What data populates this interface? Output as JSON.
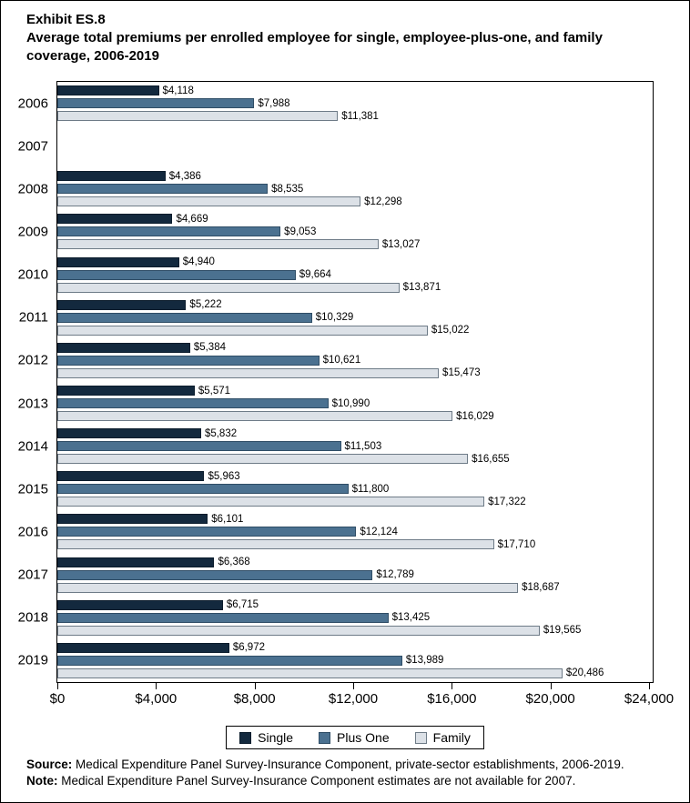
{
  "header": {
    "exhibit": "Exhibit ES.8",
    "title": "Average total premiums per enrolled employee for single, employee-plus-one, and family coverage, 2006-2019"
  },
  "chart_data": {
    "type": "bar",
    "orientation": "horizontal",
    "title": "Average total premiums per enrolled employee for single, employee-plus-one, and family coverage, 2006-2019",
    "categories": [
      "2006",
      "2007",
      "2008",
      "2009",
      "2010",
      "2011",
      "2012",
      "2013",
      "2014",
      "2015",
      "2016",
      "2017",
      "2018",
      "2019"
    ],
    "series": [
      {
        "name": "Single",
        "color": "#13293e",
        "border": "#0b1c2c",
        "values": [
          4118,
          null,
          4386,
          4669,
          4940,
          5222,
          5384,
          5571,
          5832,
          5963,
          6101,
          6368,
          6715,
          6972
        ]
      },
      {
        "name": "Plus One",
        "color": "#4b7190",
        "border": "#2f4d66",
        "values": [
          7988,
          null,
          8535,
          9053,
          9664,
          10329,
          10621,
          10990,
          11503,
          11800,
          12124,
          12789,
          13425,
          13989
        ]
      },
      {
        "name": "Family",
        "color": "#dce1e7",
        "border": "#6e7b87",
        "values": [
          11381,
          null,
          12298,
          13027,
          13871,
          15022,
          15473,
          16029,
          16655,
          17322,
          17710,
          18687,
          19565,
          20486
        ]
      }
    ],
    "value_prefix": "$",
    "xlim": [
      0,
      24000
    ],
    "x_tick_values": [
      0,
      4000,
      8000,
      12000,
      16000,
      20000,
      24000
    ],
    "x_ticks": [
      "$0",
      "$4,000",
      "$8,000",
      "$12,000",
      "$16,000",
      "$20,000",
      "$24,000"
    ],
    "legend_position": "bottom",
    "grid": false,
    "note": "No bars shown for 2007 (estimates not available)"
  },
  "footer": {
    "source_label": "Source:",
    "source_text": "Medical Expenditure Panel Survey-Insurance Component, private-sector establishments, 2006-2019.",
    "note_label": "Note:",
    "note_text": "Medical Expenditure Panel Survey-Insurance Component estimates are not available for 2007."
  }
}
